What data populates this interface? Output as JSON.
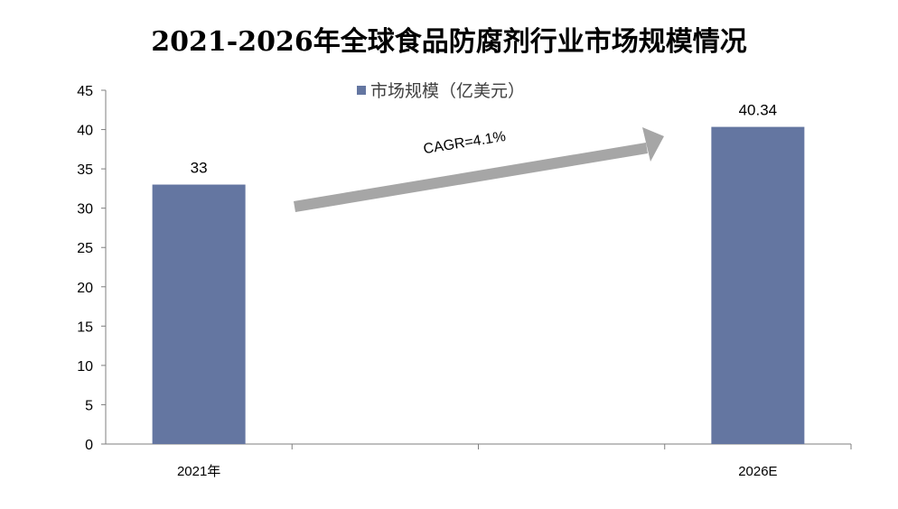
{
  "chart_data": {
    "type": "bar",
    "title": "2021-2026年全球食品防腐剂行业市场规模情况",
    "xlabel": "",
    "ylabel": "",
    "categories": [
      "2021年",
      "2026E"
    ],
    "series": [
      {
        "name": "市场规模（亿美元）",
        "values": [
          33,
          40.34
        ],
        "data_labels": [
          "33",
          "40.34"
        ]
      }
    ],
    "ylim": [
      0,
      45
    ],
    "ytick_step": 5,
    "yticks": [
      "0",
      "5",
      "10",
      "15",
      "20",
      "25",
      "30",
      "35",
      "40",
      "45"
    ],
    "legend_position": "top-center",
    "grid": false,
    "annotation": "CAGR=4.1%",
    "colors": {
      "bar": "#6476a1",
      "arrow": "#a6a6a6",
      "axis": "#7f7f7f"
    }
  }
}
